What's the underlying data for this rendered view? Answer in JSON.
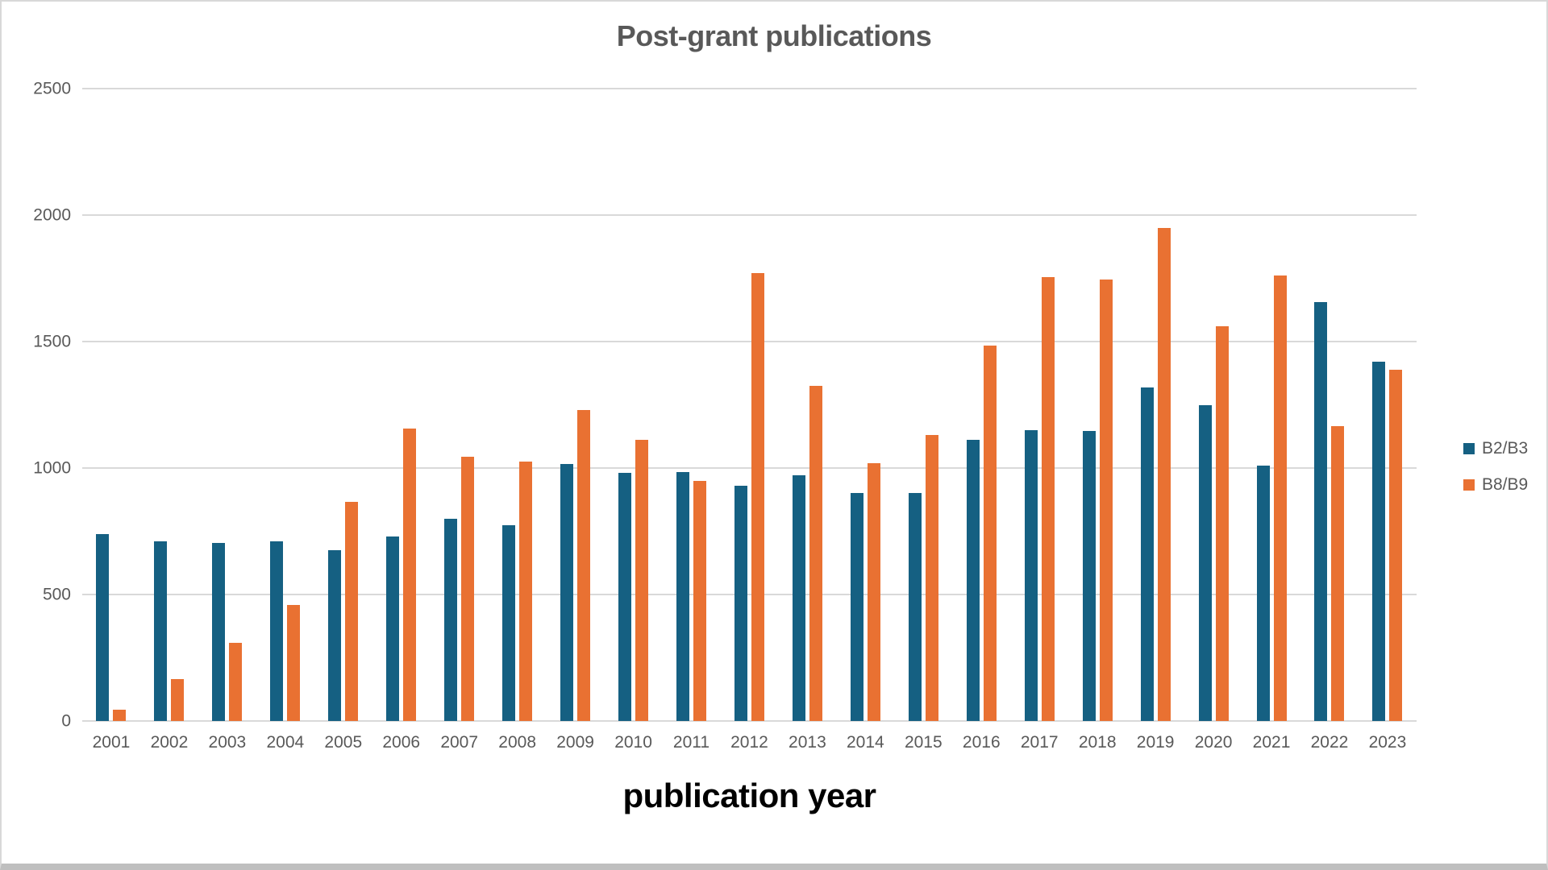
{
  "chart_data": {
    "type": "bar",
    "title": "Post-grant publications",
    "xlabel": "publication year",
    "ylabel": "",
    "ylim": [
      0,
      2500
    ],
    "ytick_step": 500,
    "grid": true,
    "legend_position": "right",
    "categories": [
      "2001",
      "2002",
      "2003",
      "2004",
      "2005",
      "2006",
      "2007",
      "2008",
      "2009",
      "2010",
      "2011",
      "2012",
      "2013",
      "2014",
      "2015",
      "2016",
      "2017",
      "2018",
      "2019",
      "2020",
      "2021",
      "2022",
      "2023"
    ],
    "series": [
      {
        "name": "B2/B3",
        "color": "#156082",
        "values": [
          740,
          710,
          705,
          710,
          675,
          730,
          800,
          775,
          1015,
          980,
          985,
          930,
          970,
          900,
          900,
          1110,
          1150,
          1145,
          1320,
          1250,
          1010,
          1655,
          1420
        ]
      },
      {
        "name": "B8/B9",
        "color": "#E97132",
        "values": [
          45,
          165,
          310,
          460,
          865,
          1155,
          1045,
          1025,
          1230,
          1110,
          950,
          1770,
          1325,
          1020,
          1130,
          1485,
          1755,
          1745,
          1950,
          1560,
          1760,
          1165,
          1390
        ]
      }
    ],
    "colors": {
      "title_text": "#595959",
      "tick_text": "#595959",
      "axis_title_text": "#000000",
      "gridline": "#D9D9D9",
      "background": "#FFFFFF"
    }
  }
}
